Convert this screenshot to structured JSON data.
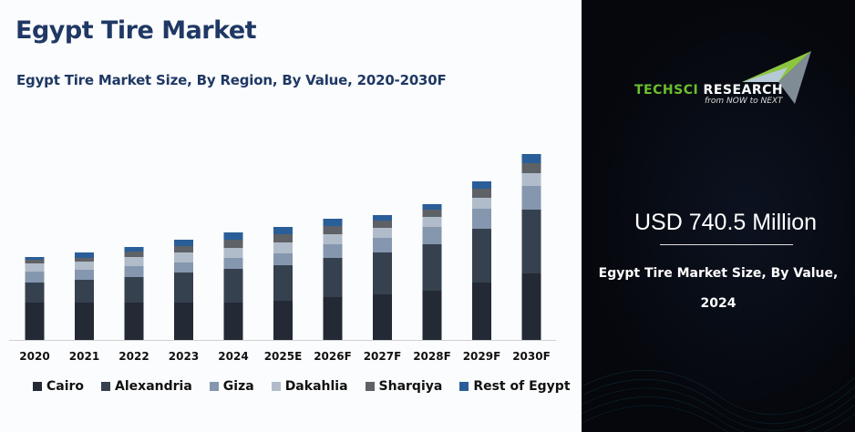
{
  "header": {
    "title": "Egypt Tire Market",
    "subtitle": "Egypt Tire Market Size, By Region, By Value, 2020-2030F"
  },
  "panel": {
    "logo_brand": "TECHSCI RESEARCH",
    "logo_tagline": "from NOW to NEXT",
    "headline_value": "USD 740.5 Million",
    "caption_line1": "Egypt Tire Market Size, By Value,",
    "caption_line2": "2024"
  },
  "chart_data": {
    "type": "bar",
    "stacked": true,
    "title": "Egypt Tire Market Size, By Region, By Value, 2020-2030F",
    "xlabel": "",
    "ylabel": "",
    "y_axis_shown": false,
    "grid": false,
    "legend_position": "bottom",
    "categories": [
      "2020",
      "2021",
      "2022",
      "2023",
      "2024",
      "2025E",
      "2026F",
      "2027F",
      "2028F",
      "2029F",
      "2030F"
    ],
    "series": [
      {
        "name": "Cairo",
        "color": "#232a35",
        "values": [
          41,
          41,
          41,
          41,
          41,
          43,
          47,
          50,
          54,
          63,
          73
        ]
      },
      {
        "name": "Alexandria",
        "color": "#36414f",
        "values": [
          22,
          25,
          28,
          33,
          37,
          39,
          43,
          46,
          51,
          59,
          70
        ]
      },
      {
        "name": "Giza",
        "color": "#8597ae",
        "values": [
          12,
          11,
          12,
          11,
          12,
          13,
          15,
          16,
          19,
          22,
          26
        ]
      },
      {
        "name": "Dakahlia",
        "color": "#b1bccb",
        "values": [
          9,
          9,
          10,
          11,
          11,
          12,
          11,
          11,
          11,
          12,
          14
        ]
      },
      {
        "name": "Sharqiya",
        "color": "#5e6166",
        "values": [
          4,
          4,
          6,
          7,
          9,
          9,
          9,
          8,
          8,
          10,
          11
        ]
      },
      {
        "name": "Rest of Egypt",
        "color": "#2a5e98",
        "values": [
          3,
          6,
          5,
          7,
          8,
          8,
          8,
          6,
          6,
          8,
          10
        ]
      }
    ]
  }
}
